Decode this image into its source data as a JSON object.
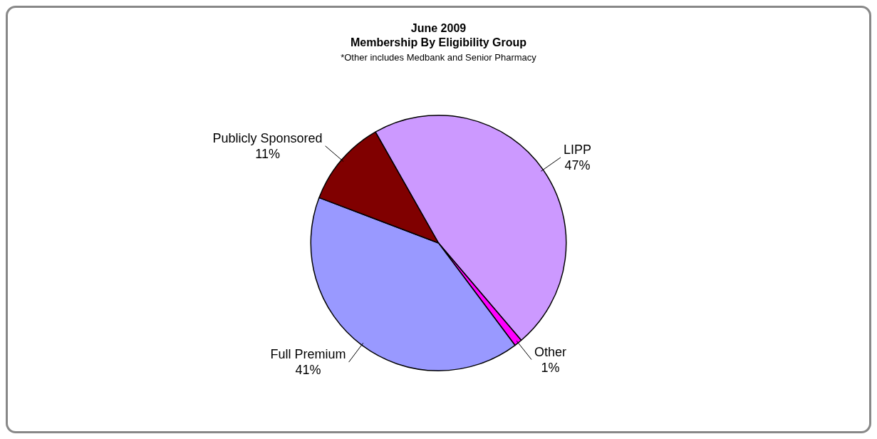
{
  "chart_data": {
    "type": "pie",
    "title": "June 2009",
    "subtitle": "Membership By Eligibility Group",
    "annotations": [
      "*Other includes Medbank and Senior Pharmacy"
    ],
    "categories": [
      "LIPP",
      "Other",
      "Full Premium",
      "Publicly Sponsored"
    ],
    "values": [
      47,
      1,
      41,
      11
    ],
    "value_labels": [
      "47%",
      "1%",
      "41%",
      "11%"
    ],
    "colors": [
      "#cc99ff",
      "#ff00ff",
      "#9999ff",
      "#800000"
    ],
    "legend": false
  }
}
